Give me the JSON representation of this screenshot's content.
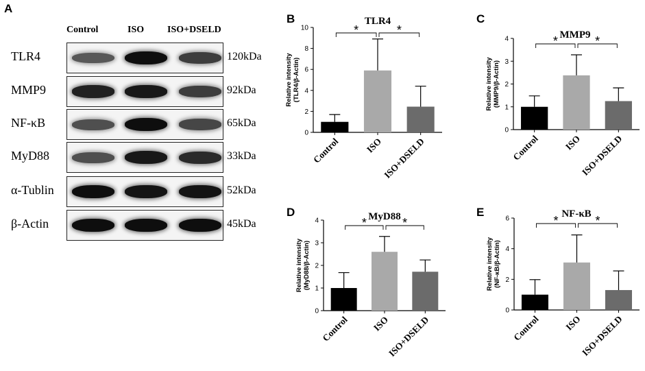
{
  "panel_a": {
    "letter": "A",
    "columns": [
      "Control",
      "ISO",
      "ISO+DSELD"
    ],
    "rows": [
      {
        "protein": "TLR4",
        "size": "120kDa",
        "intensity": [
          0.55,
          0.95,
          0.7
        ]
      },
      {
        "protein": "MMP9",
        "size": "92kDa",
        "intensity": [
          0.85,
          0.9,
          0.7
        ]
      },
      {
        "protein": "NF-κB",
        "size": "65kDa",
        "intensity": [
          0.6,
          0.95,
          0.65
        ]
      },
      {
        "protein": "MyD88",
        "size": "33kDa",
        "intensity": [
          0.6,
          0.9,
          0.8
        ]
      },
      {
        "protein": "α-Tublin",
        "size": "52kDa",
        "intensity": [
          0.95,
          0.92,
          0.92
        ]
      },
      {
        "protein": "β-Actin",
        "size": "45kDa",
        "intensity": [
          0.95,
          0.95,
          0.95
        ]
      }
    ]
  },
  "colors": {
    "control": "#000000",
    "iso": "#a9a9a9",
    "iso_dseld": "#6b6b6b"
  },
  "chart_data": [
    {
      "letter": "B",
      "type": "bar",
      "title": "TLR4",
      "ylabel": [
        "Relative intensity",
        "(TLR4/β-Actin)"
      ],
      "categories": [
        "Control",
        "ISO",
        "ISO+DSELD"
      ],
      "values": [
        1.0,
        5.9,
        2.45
      ],
      "errors": [
        0.7,
        3.0,
        1.95
      ],
      "ylim": [
        0,
        10
      ],
      "yticks": [
        "0",
        "2",
        "4",
        "6",
        "8",
        "10"
      ],
      "significance": [
        "*",
        "*"
      ]
    },
    {
      "letter": "C",
      "type": "bar",
      "title": "MMP9",
      "ylabel": [
        "Relative intensity",
        "(MMP9/β-Actin)"
      ],
      "categories": [
        "Control",
        "ISO",
        "ISO+DSELD"
      ],
      "values": [
        1.0,
        2.38,
        1.25
      ],
      "errors": [
        0.48,
        0.9,
        0.58
      ],
      "ylim": [
        0,
        4
      ],
      "yticks": [
        "0",
        "1",
        "2",
        "3",
        "4"
      ],
      "significance": [
        "*",
        "*"
      ]
    },
    {
      "letter": "D",
      "type": "bar",
      "title": "MyD88",
      "ylabel": [
        "Relative intensity",
        "(MyD88/β-Actin)"
      ],
      "categories": [
        "Control",
        "ISO",
        "ISO+DSELD"
      ],
      "values": [
        1.0,
        2.6,
        1.72
      ],
      "errors": [
        0.68,
        0.68,
        0.52
      ],
      "ylim": [
        0,
        4
      ],
      "yticks": [
        "0",
        "1",
        "2",
        "3",
        "4"
      ],
      "significance": [
        "*",
        "*"
      ]
    },
    {
      "letter": "E",
      "type": "bar",
      "title": "NF-κB",
      "ylabel": [
        "Relative intensity",
        "(NF-κB/β-Actin)"
      ],
      "categories": [
        "Control",
        "ISO",
        "ISO+DSELD"
      ],
      "values": [
        1.0,
        3.1,
        1.3
      ],
      "errors": [
        0.98,
        1.8,
        1.25
      ],
      "ylim": [
        0,
        6
      ],
      "yticks": [
        "0",
        "2",
        "4",
        "6"
      ],
      "significance": [
        "*",
        "*"
      ]
    }
  ]
}
